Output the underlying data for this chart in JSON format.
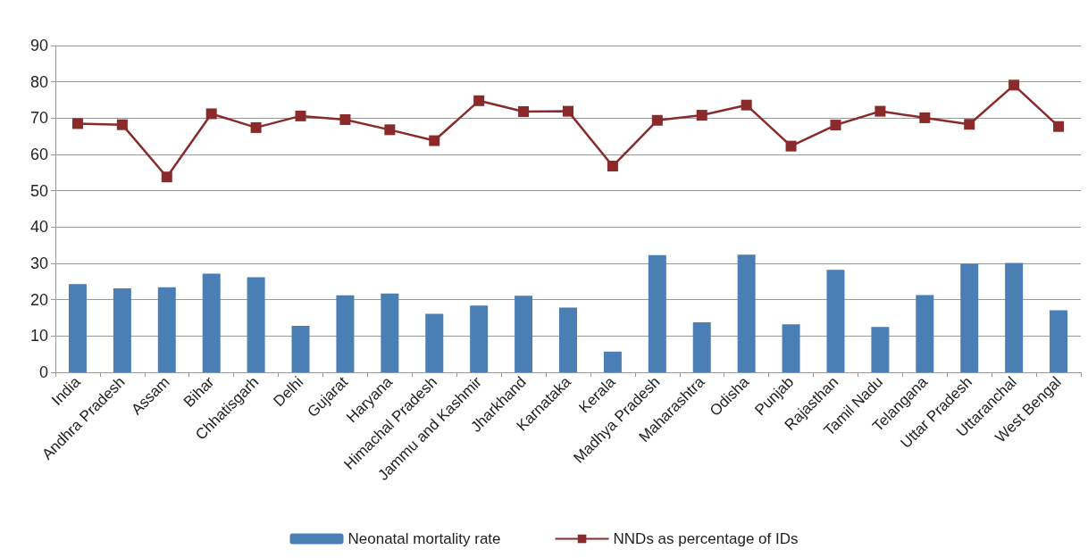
{
  "chart_data": {
    "type": "bar",
    "categories": [
      "India",
      "Andhra Pradesh",
      "Assam",
      "Bihar",
      "Chhatisgarh",
      "Delhi",
      "Gujarat",
      "Haryana",
      "Himachal Pradesh",
      "Jammu and Kashmir",
      "Jharkhand",
      "Karnataka",
      "Kerala",
      "Madhya Pradesh",
      "Maharashtra",
      "Odisha",
      "Punjab",
      "Rajasthan",
      "Tamil Nadu",
      "Telangana",
      "Uttar Pradesh",
      "Uttaranchal",
      "West Bengal"
    ],
    "series": [
      {
        "name": "Neonatal mortality rate",
        "color": "#4a7fb6",
        "values": [
          24.3,
          23.1,
          23.4,
          27.2,
          26.2,
          12.8,
          21.2,
          21.7,
          16.1,
          18.4,
          21.1,
          17.8,
          5.7,
          32.3,
          13.8,
          32.4,
          13.2,
          28.2,
          12.5,
          21.3,
          29.9,
          30.1,
          17.1
        ]
      },
      {
        "name": "NNDs as percentage of IDs",
        "type": "line",
        "color": "#8b2a2a",
        "marker": "square",
        "values": [
          68.5,
          68.2,
          53.8,
          71.2,
          67.4,
          70.6,
          69.6,
          66.8,
          63.8,
          74.8,
          71.8,
          71.9,
          56.8,
          69.4,
          70.8,
          73.6,
          62.3,
          68.1,
          71.9,
          70.1,
          68.3,
          79.1,
          67.7
        ]
      }
    ],
    "ylim": [
      0,
      90
    ],
    "yticks": [
      0,
      10,
      20,
      30,
      40,
      50,
      60,
      70,
      80,
      90
    ],
    "grid": "y",
    "legend": "bottom"
  }
}
